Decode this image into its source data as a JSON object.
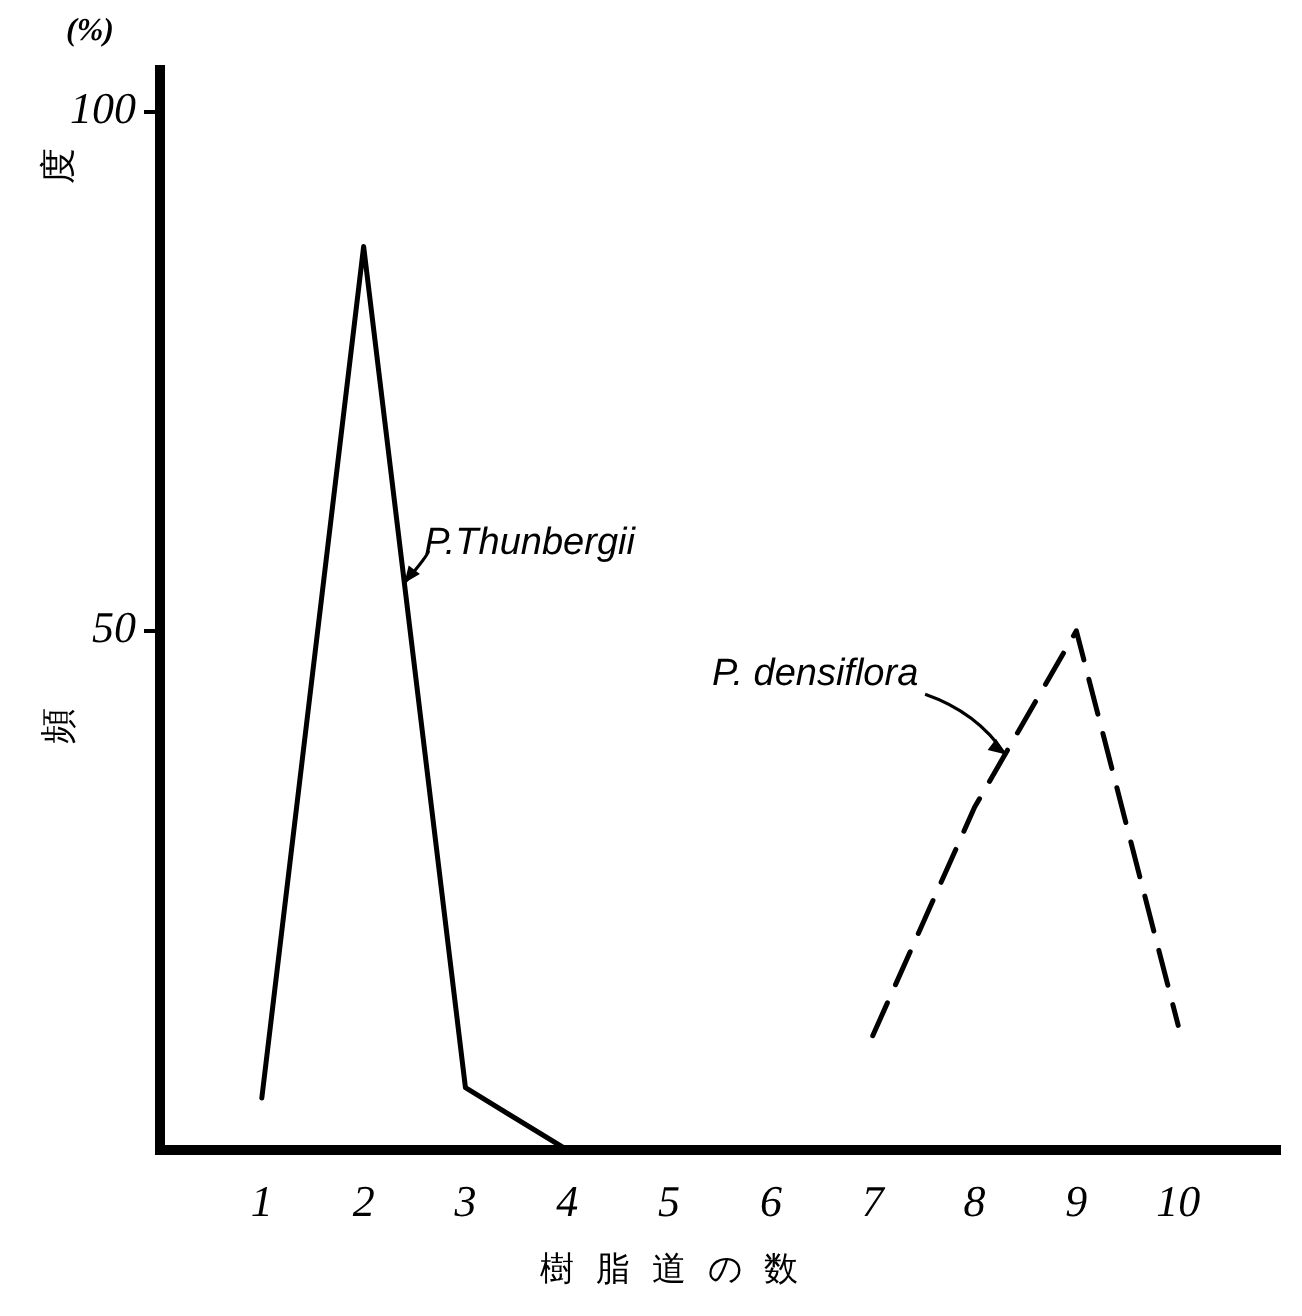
{
  "chart_data": {
    "type": "line",
    "xlabel": "樹脂道の数",
    "ylabel": "頻度",
    "annotations": [
      "(%)"
    ],
    "xlim": [
      0,
      11
    ],
    "xticks": [
      1,
      2,
      3,
      4,
      5,
      6,
      7,
      8,
      9,
      10
    ],
    "ylim": [
      0,
      104
    ],
    "yticks": [
      50,
      100
    ],
    "grid": false,
    "marker": "none",
    "series": [
      {
        "name": "P.Thunbergii",
        "color": "#000000",
        "line_style": "solid",
        "x": [
          1,
          2,
          3,
          4
        ],
        "values": [
          5,
          87,
          6,
          0
        ]
      },
      {
        "name": "P. densiflora",
        "color": "#000000",
        "line_style": "dashed",
        "x": [
          7,
          8,
          9,
          10
        ],
        "values": [
          11,
          33,
          50,
          12
        ]
      }
    ]
  }
}
